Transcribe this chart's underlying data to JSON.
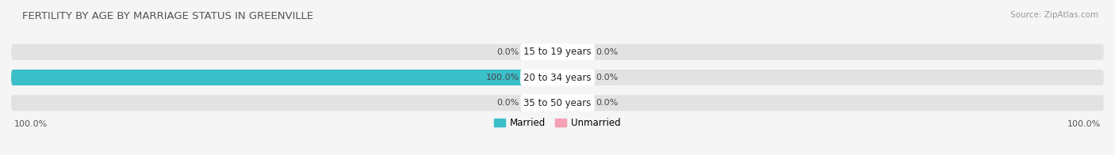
{
  "title": "FERTILITY BY AGE BY MARRIAGE STATUS IN GREENVILLE",
  "source": "Source: ZipAtlas.com",
  "categories": [
    "15 to 19 years",
    "20 to 34 years",
    "35 to 50 years"
  ],
  "married_values": [
    0.0,
    100.0,
    0.0
  ],
  "unmarried_values": [
    0.0,
    0.0,
    0.0
  ],
  "married_color": "#3bbfc9",
  "unmarried_color": "#f5a0b5",
  "bar_bg_color": "#e2e2e2",
  "background_color": "#f5f5f5",
  "left_label": "100.0%",
  "right_label": "100.0%",
  "xlim": 100,
  "title_fontsize": 9.5,
  "source_fontsize": 7.5,
  "label_fontsize": 8,
  "cat_fontsize": 8.5,
  "bar_height": 0.62,
  "legend_married": "Married",
  "legend_unmarried": "Unmarried",
  "small_bar_width": 5.5
}
